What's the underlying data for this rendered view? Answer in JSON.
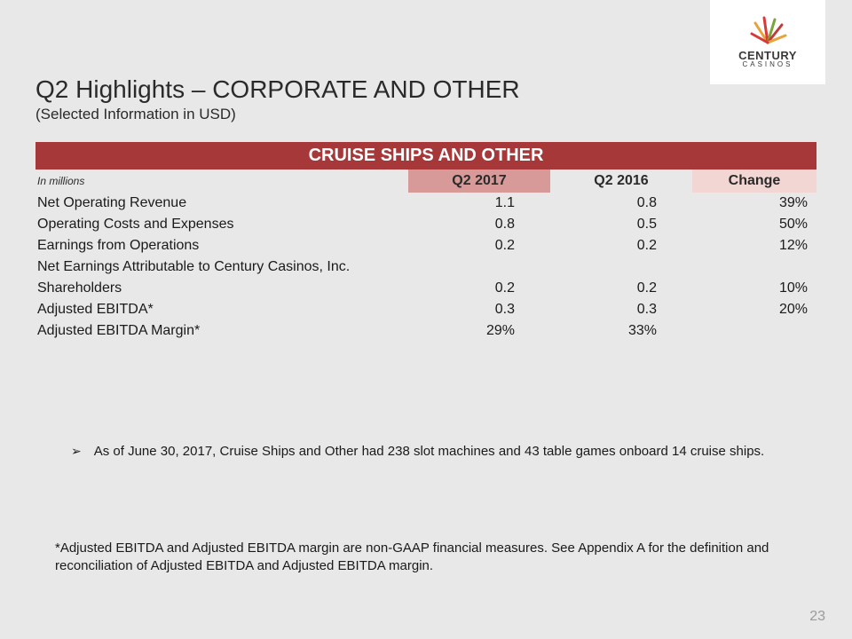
{
  "logo": {
    "line1": "CENTURY",
    "line2": "CASINOS"
  },
  "header": {
    "title": "Q2 Highlights – CORPORATE AND OTHER",
    "subtitle": "(Selected Information in USD)"
  },
  "table": {
    "banner": "CRUISE SHIPS AND OTHER",
    "unit_label": "In millions",
    "columns": [
      "Q2 2017",
      "Q2 2016",
      "Change"
    ],
    "header_colors": {
      "col1": "#d89a98",
      "col2": "#e8e8e8",
      "col3": "#f2d6d4",
      "banner": "#a6383a"
    },
    "rows": [
      {
        "label": "Net Operating Revenue",
        "c1": "1.1",
        "c2": "0.8",
        "c3": "39%"
      },
      {
        "label": "Operating Costs and Expenses",
        "c1": "0.8",
        "c2": "0.5",
        "c3": "50%"
      },
      {
        "label": "Earnings from Operations",
        "c1": "0.2",
        "c2": "0.2",
        "c3": "12%"
      },
      {
        "label": "Net Earnings Attributable to Century Casinos, Inc.",
        "c1": "",
        "c2": "",
        "c3": ""
      },
      {
        "label": "Shareholders",
        "c1": "0.2",
        "c2": "0.2",
        "c3": "10%"
      },
      {
        "label": "Adjusted EBITDA*",
        "c1": "0.3",
        "c2": "0.3",
        "c3": "20%"
      },
      {
        "label": "Adjusted EBITDA Margin*",
        "c1": "29%",
        "c2": "33%",
        "c3": ""
      }
    ]
  },
  "bullet": "As of June 30, 2017, Cruise Ships and Other had 238 slot machines and 43 table games onboard 14 cruise ships.",
  "footnote": "*Adjusted EBITDA and Adjusted EBITDA margin are non-GAAP financial measures. See Appendix A for the definition and reconciliation of Adjusted EBITDA and Adjusted EBITDA margin.",
  "page_number": "23",
  "colors": {
    "page_bg": "#e8e8e8",
    "text": "#1a1a1a",
    "page_num": "#9a9a9a"
  }
}
